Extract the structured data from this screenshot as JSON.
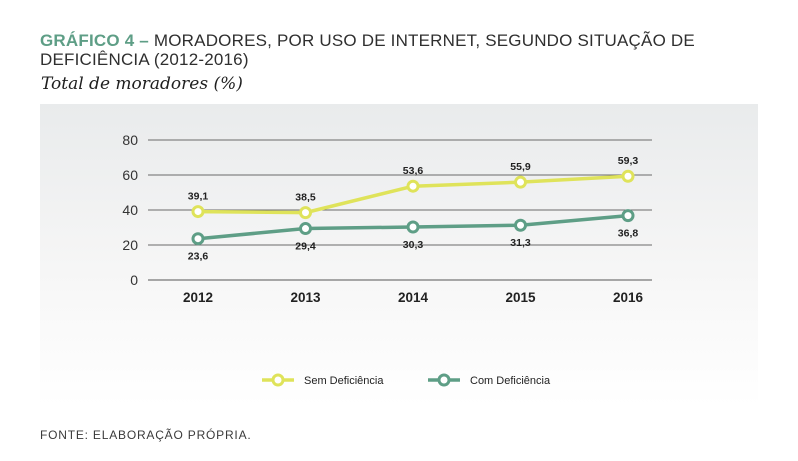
{
  "chart_data": {
    "type": "line",
    "title_lead": "GRÁFICO 4 –",
    "title": "MORADORES, POR USO DE INTERNET, SEGUNDO SITUAÇÃO DE DEFICIÊNCIA (2012-2016)",
    "subtitle": "Total de moradores (%)",
    "x": [
      "2012",
      "2013",
      "2014",
      "2015",
      "2016"
    ],
    "ylim": [
      0,
      80
    ],
    "yticks": [
      0,
      20,
      40,
      60,
      80
    ],
    "grid": true,
    "legend_position": "bottom-center",
    "series": [
      {
        "name": "Sem Deficiência",
        "color": "#dfe35a",
        "values": [
          39.1,
          38.5,
          53.6,
          55.9,
          59.3
        ],
        "labels": [
          "39,1",
          "38,5",
          "53,6",
          "55,9",
          "59,3"
        ],
        "label_position": "above"
      },
      {
        "name": "Com Deficiência",
        "color": "#5e9e86",
        "values": [
          23.6,
          29.4,
          30.3,
          31.3,
          36.8
        ],
        "labels": [
          "23,6",
          "29,4",
          "30,3",
          "31,3",
          "36,8"
        ],
        "label_position": "below"
      }
    ]
  },
  "source": "FONTE: ELABORAÇÃO PRÓPRIA."
}
